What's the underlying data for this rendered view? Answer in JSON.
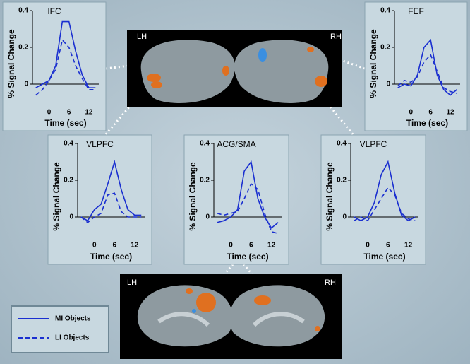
{
  "chart_data": [
    {
      "type": "line",
      "title": "IFC",
      "x_label": "Time (sec)",
      "y_label": "% Signal Change",
      "x": [
        -4,
        -2,
        0,
        2,
        4,
        6,
        8,
        10,
        12,
        14
      ],
      "xlim": [
        -5,
        15
      ],
      "xticks": [
        0,
        6,
        12
      ],
      "ylim": [
        -0.1,
        0.4
      ],
      "yticks": [
        0,
        0.2,
        0.4
      ],
      "series": [
        {
          "name": "MI Objects",
          "color": "#1a2fd0",
          "line_style": "solid",
          "values": [
            -0.02,
            0.0,
            0.02,
            0.1,
            0.34,
            0.34,
            0.18,
            0.05,
            -0.02,
            -0.02
          ]
        },
        {
          "name": "LI Objects",
          "color": "#1a2fd0",
          "line_style": "dashed",
          "values": [
            -0.06,
            -0.03,
            0.02,
            0.08,
            0.24,
            0.2,
            0.1,
            0.03,
            -0.03,
            -0.03
          ]
        }
      ]
    },
    {
      "type": "line",
      "title": "FEF",
      "x_label": "Time (sec)",
      "y_label": "% Signal Change",
      "x": [
        -4,
        -2,
        0,
        2,
        4,
        6,
        8,
        10,
        12,
        14
      ],
      "xlim": [
        -5,
        15
      ],
      "xticks": [
        0,
        6,
        12
      ],
      "ylim": [
        -0.1,
        0.4
      ],
      "yticks": [
        0,
        0.2,
        0.4
      ],
      "series": [
        {
          "name": "MI Objects",
          "color": "#1a2fd0",
          "line_style": "solid",
          "values": [
            -0.02,
            0.0,
            -0.01,
            0.05,
            0.2,
            0.24,
            0.05,
            -0.03,
            -0.06,
            -0.03
          ]
        },
        {
          "name": "LI Objects",
          "color": "#1a2fd0",
          "line_style": "dashed",
          "values": [
            -0.01,
            0.02,
            0.01,
            0.04,
            0.12,
            0.16,
            0.07,
            -0.02,
            -0.04,
            -0.05
          ]
        }
      ]
    },
    {
      "type": "line",
      "title": "VLPFC",
      "x_label": "Time (sec)",
      "y_label": "% Signal Change",
      "x": [
        -4,
        -2,
        0,
        2,
        4,
        6,
        8,
        10,
        12,
        14
      ],
      "xlim": [
        -5,
        15
      ],
      "xticks": [
        0,
        6,
        12
      ],
      "ylim": [
        -0.1,
        0.4
      ],
      "yticks": [
        0,
        0.2,
        0.4
      ],
      "series": [
        {
          "name": "MI Objects",
          "color": "#1a2fd0",
          "line_style": "solid",
          "values": [
            0.0,
            -0.02,
            0.04,
            0.07,
            0.18,
            0.3,
            0.15,
            0.04,
            0.01,
            0.01
          ]
        },
        {
          "name": "LI Objects",
          "color": "#1a2fd0",
          "line_style": "dashed",
          "values": [
            0.0,
            -0.03,
            0.0,
            0.02,
            0.12,
            0.13,
            0.03,
            0.0,
            0.0,
            0.0
          ]
        }
      ]
    },
    {
      "type": "line",
      "title": "ACG/SMA",
      "x_label": "Time (sec)",
      "y_label": "% Signal Change",
      "x": [
        -4,
        -2,
        0,
        2,
        4,
        6,
        8,
        10,
        12,
        14
      ],
      "xlim": [
        -5,
        15
      ],
      "xticks": [
        0,
        6,
        12
      ],
      "ylim": [
        -0.1,
        0.4
      ],
      "yticks": [
        0,
        0.2,
        0.4
      ],
      "series": [
        {
          "name": "MI Objects",
          "color": "#1a2fd0",
          "line_style": "solid",
          "values": [
            -0.03,
            -0.02,
            0.0,
            0.04,
            0.25,
            0.3,
            0.1,
            0.0,
            -0.06,
            -0.03
          ]
        },
        {
          "name": "LI Objects",
          "color": "#1a2fd0",
          "line_style": "dashed",
          "values": [
            0.02,
            0.01,
            0.02,
            0.03,
            0.1,
            0.18,
            0.15,
            0.02,
            -0.08,
            -0.09
          ]
        }
      ]
    },
    {
      "type": "line",
      "title": "VLPFC",
      "x_label": "Time (sec)",
      "y_label": "% Signal Change",
      "x": [
        -4,
        -2,
        0,
        2,
        4,
        6,
        8,
        10,
        12,
        14
      ],
      "xlim": [
        -5,
        15
      ],
      "xticks": [
        0,
        6,
        12
      ],
      "ylim": [
        -0.1,
        0.4
      ],
      "yticks": [
        0,
        0.2,
        0.4
      ],
      "series": [
        {
          "name": "MI Objects",
          "color": "#1a2fd0",
          "line_style": "solid",
          "values": [
            0.0,
            -0.02,
            0.0,
            0.08,
            0.23,
            0.3,
            0.13,
            0.01,
            -0.02,
            0.0
          ]
        },
        {
          "name": "LI Objects",
          "color": "#1a2fd0",
          "line_style": "dashed",
          "values": [
            -0.02,
            0.0,
            -0.02,
            0.04,
            0.1,
            0.16,
            0.12,
            0.02,
            -0.01,
            -0.02
          ]
        }
      ]
    }
  ],
  "images": [
    {
      "left_label": "LH",
      "right_label": "RH"
    },
    {
      "left_label": "LH",
      "right_label": "RH"
    }
  ]
}
